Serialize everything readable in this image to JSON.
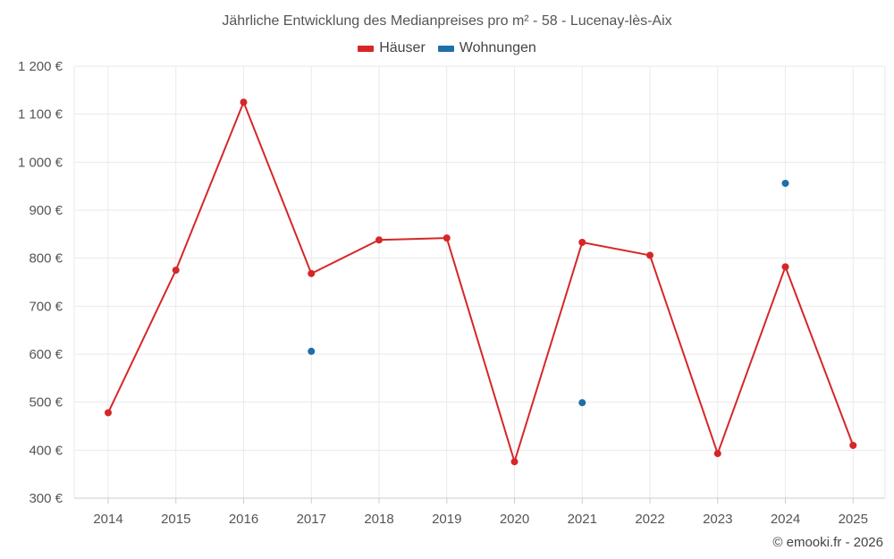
{
  "chart_data": {
    "type": "line",
    "title": "Jährliche Entwicklung des Medianpreises pro m² - 58 - Lucenay-lès-Aix",
    "categories": [
      "2014",
      "2015",
      "2016",
      "2017",
      "2018",
      "2019",
      "2020",
      "2021",
      "2022",
      "2023",
      "2024",
      "2025"
    ],
    "y_ticks": [
      300,
      400,
      500,
      600,
      700,
      800,
      900,
      1000,
      1100,
      1200
    ],
    "y_tick_labels": [
      "300 €",
      "400 €",
      "500 €",
      "600 €",
      "700 €",
      "800 €",
      "900 €",
      "1 000 €",
      "1 100 €",
      "1 200 €"
    ],
    "ylim": [
      300,
      1200
    ],
    "grid": true,
    "legend_position": "top-center",
    "series": [
      {
        "name": "Häuser",
        "color": "#d62728",
        "mode": "lines+markers",
        "values": [
          478,
          775,
          1125,
          768,
          838,
          842,
          376,
          833,
          806,
          393,
          782,
          410
        ]
      },
      {
        "name": "Wohnungen",
        "color": "#1f6fa8",
        "mode": "markers",
        "values": [
          null,
          null,
          null,
          606,
          null,
          null,
          null,
          499,
          null,
          null,
          956,
          null
        ]
      }
    ]
  },
  "footer": {
    "credit": "© emooki.fr - 2026"
  }
}
